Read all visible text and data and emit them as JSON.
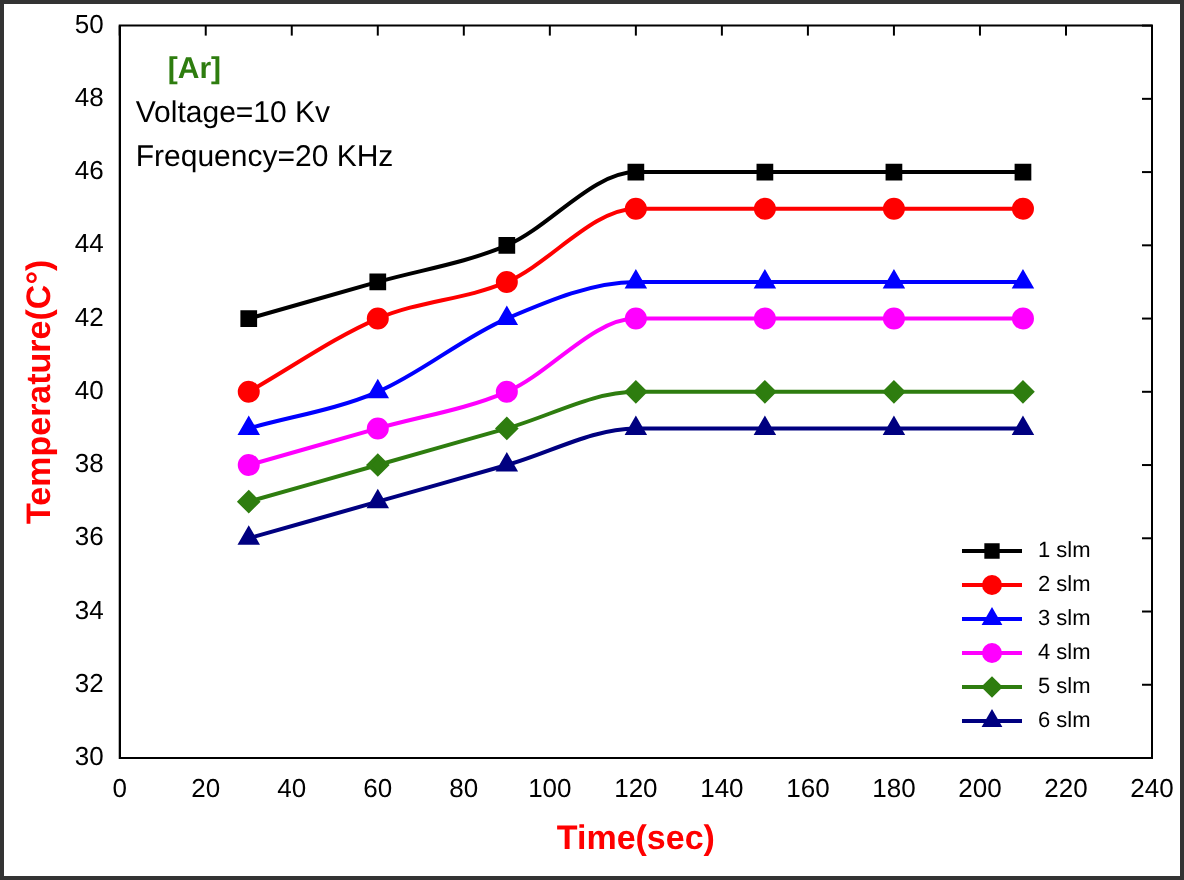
{
  "chart_data": {
    "type": "line",
    "xlabel": "Time(sec)",
    "ylabel": "Temperature(C°)",
    "annotations": [
      "[Ar]",
      "Voltage=10 Kv",
      "Frequency=20 KHz"
    ],
    "x": [
      30,
      60,
      90,
      120,
      150,
      180,
      210
    ],
    "xlim": [
      0,
      240
    ],
    "xticks": [
      0,
      20,
      40,
      60,
      80,
      100,
      120,
      140,
      160,
      180,
      200,
      220,
      240
    ],
    "ylim": [
      30,
      50
    ],
    "yticks": [
      30,
      32,
      34,
      36,
      38,
      40,
      42,
      44,
      46,
      48,
      50
    ],
    "grid": false,
    "legend": "bottom right",
    "line_style": "solid",
    "series": [
      {
        "name": "1 slm",
        "color": "#000000",
        "marker": "square",
        "values": [
          42,
          43,
          44,
          46,
          46,
          46,
          46
        ]
      },
      {
        "name": "2 slm",
        "color": "#ff0000",
        "marker": "circle",
        "values": [
          40,
          42,
          43,
          45,
          45,
          45,
          45
        ]
      },
      {
        "name": "3 slm",
        "color": "#0000ff",
        "marker": "triangle",
        "values": [
          39,
          40,
          42,
          43,
          43,
          43,
          43
        ]
      },
      {
        "name": "4 slm",
        "color": "#ff00ff",
        "marker": "circle",
        "values": [
          38,
          39,
          40,
          42,
          42,
          42,
          42
        ]
      },
      {
        "name": "5 slm",
        "color": "#2e7d0f",
        "marker": "diamond",
        "values": [
          37,
          38,
          39,
          40,
          40,
          40,
          40
        ]
      },
      {
        "name": "6 slm",
        "color": "#000080",
        "marker": "triangle",
        "values": [
          36,
          37,
          38,
          39,
          39,
          39,
          39
        ]
      }
    ]
  }
}
